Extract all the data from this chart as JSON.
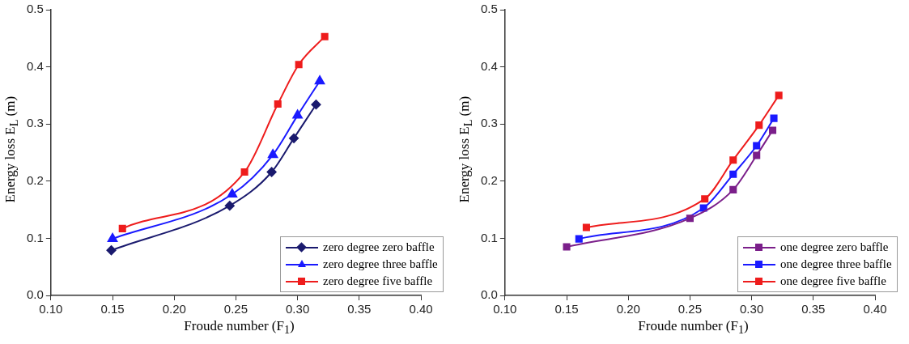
{
  "chart_data": [
    {
      "type": "line",
      "xlabel": "Froude number (F$_{1}$)",
      "ylabel": "Energy loss E$_{L}$ (m)",
      "xlim": [
        0.1,
        0.4
      ],
      "ylim": [
        0,
        0.5
      ],
      "xticks": [
        {
          "value": 0.1,
          "label": "0.10"
        },
        {
          "value": 0.15,
          "label": "0.15"
        },
        {
          "value": 0.2,
          "label": "0.20"
        },
        {
          "value": 0.25,
          "label": "0.25"
        },
        {
          "value": 0.3,
          "label": "0.30"
        },
        {
          "value": 0.35,
          "label": "0.35"
        },
        {
          "value": 0.4,
          "label": "0.40"
        }
      ],
      "yticks": [
        {
          "value": 0,
          "label": "0.0"
        },
        0.1,
        0.2,
        0.3,
        0.4,
        0.5
      ],
      "grid": false,
      "legend": "bottom right",
      "series": [
        {
          "name": "zero degree zero baffle",
          "color": "#1a1a6e",
          "marker": "diamond",
          "x": [
            0.149,
            0.245,
            0.279,
            0.297,
            0.315
          ],
          "values": [
            0.079,
            0.157,
            0.216,
            0.275,
            0.334
          ]
        },
        {
          "name": "zero degree three baffle",
          "color": "#1a1aff",
          "marker": "triangle",
          "x": [
            0.15,
            0.247,
            0.28,
            0.3,
            0.318
          ],
          "values": [
            0.099,
            0.177,
            0.246,
            0.315,
            0.375
          ]
        },
        {
          "name": "zero degree five baffle",
          "color": "#ee1c1c",
          "marker": "square",
          "x": [
            0.158,
            0.257,
            0.284,
            0.301,
            0.322
          ],
          "values": [
            0.117,
            0.216,
            0.335,
            0.404,
            0.453
          ]
        }
      ]
    },
    {
      "type": "line",
      "xlabel": "Froude number (F$_{1}$)",
      "ylabel": "Energy loss E$_{L}$ (m)",
      "xlim": [
        0.1,
        0.4
      ],
      "ylim": [
        0,
        0.5
      ],
      "xticks": [
        {
          "value": 0.1,
          "label": "0.10"
        },
        {
          "value": 0.15,
          "label": "0.15"
        },
        {
          "value": 0.2,
          "label": "0.20"
        },
        {
          "value": 0.25,
          "label": "0.25"
        },
        {
          "value": 0.3,
          "label": "0.30"
        },
        {
          "value": 0.35,
          "label": "0.35"
        },
        {
          "value": 0.4,
          "label": "0.40"
        }
      ],
      "yticks": [
        {
          "value": 0,
          "label": "0.0"
        },
        0.1,
        0.2,
        0.3,
        0.4,
        0.5
      ],
      "grid": false,
      "legend": "bottom right",
      "series": [
        {
          "name": "one degree zero baffle",
          "color": "#7b1f8a",
          "marker": "square",
          "x": [
            0.15,
            0.25,
            0.285,
            0.304,
            0.317
          ],
          "values": [
            0.085,
            0.135,
            0.185,
            0.245,
            0.289
          ]
        },
        {
          "name": "one degree three baffle",
          "color": "#1a1aff",
          "marker": "square",
          "x": [
            0.16,
            0.261,
            0.285,
            0.304,
            0.318
          ],
          "values": [
            0.099,
            0.153,
            0.212,
            0.262,
            0.31
          ]
        },
        {
          "name": "one degree five baffle",
          "color": "#ee1c1c",
          "marker": "square",
          "x": [
            0.166,
            0.262,
            0.285,
            0.306,
            0.322
          ],
          "values": [
            0.119,
            0.169,
            0.237,
            0.298,
            0.35
          ]
        }
      ]
    }
  ]
}
